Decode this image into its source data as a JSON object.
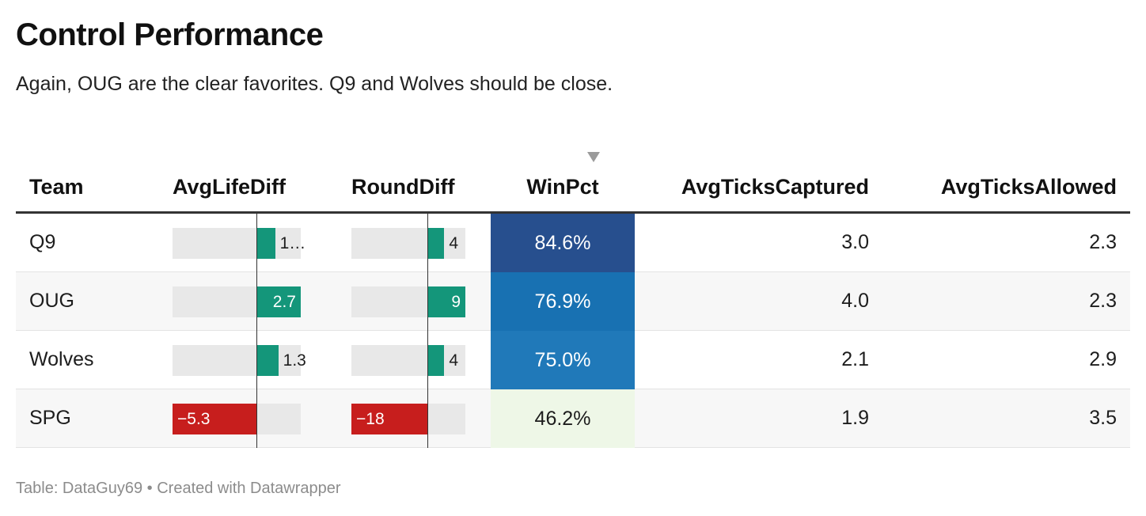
{
  "title": "Control Performance",
  "subtitle": "Again, OUG are the clear favorites. Q9 and Wolves should be close.",
  "source": "Table: DataGuy69 • Created with Datawrapper",
  "columns": {
    "team": "Team",
    "avg_life_diff": "AvgLifeDiff",
    "round_diff": "RoundDiff",
    "win_pct": "WinPct",
    "avg_ticks_captured": "AvgTicksCaptured",
    "avg_ticks_allowed": "AvgTicksAllowed"
  },
  "sorted_column": "WinPct",
  "colors": {
    "positive_bar": "#14967a",
    "negative_bar": "#c71e1d",
    "bar_background": "#e8e8e8"
  },
  "chart_data": {
    "type": "table",
    "avg_life_diff_range": [
      -5.3,
      2.7
    ],
    "round_diff_range": [
      -18,
      9
    ],
    "rows": [
      {
        "team": "Q9",
        "avg_life_diff": 1.1,
        "avg_life_diff_label": "1…",
        "round_diff": 4,
        "round_diff_label": "4",
        "win_pct": 84.6,
        "win_pct_label": "84.6%",
        "win_color": "#274f8e",
        "win_text": "#ffffff",
        "avg_ticks_captured": "3.0",
        "avg_ticks_allowed": "2.3"
      },
      {
        "team": "OUG",
        "avg_life_diff": 2.7,
        "avg_life_diff_label": "2.7",
        "round_diff": 9,
        "round_diff_label": "9",
        "win_pct": 76.9,
        "win_pct_label": "76.9%",
        "win_color": "#1871b2",
        "win_text": "#ffffff",
        "avg_ticks_captured": "4.0",
        "avg_ticks_allowed": "2.3"
      },
      {
        "team": "Wolves",
        "avg_life_diff": 1.3,
        "avg_life_diff_label": "1.3",
        "round_diff": 4,
        "round_diff_label": "4",
        "win_pct": 75.0,
        "win_pct_label": "75.0%",
        "win_color": "#2079b9",
        "win_text": "#ffffff",
        "avg_ticks_captured": "2.1",
        "avg_ticks_allowed": "2.9"
      },
      {
        "team": "SPG",
        "avg_life_diff": -5.3,
        "avg_life_diff_label": "−5.3",
        "round_diff": -18,
        "round_diff_label": "−18",
        "win_pct": 46.2,
        "win_pct_label": "46.2%",
        "win_color": "#eef7e7",
        "win_text": "#1d1d1d",
        "avg_ticks_captured": "1.9",
        "avg_ticks_allowed": "3.5"
      }
    ]
  }
}
